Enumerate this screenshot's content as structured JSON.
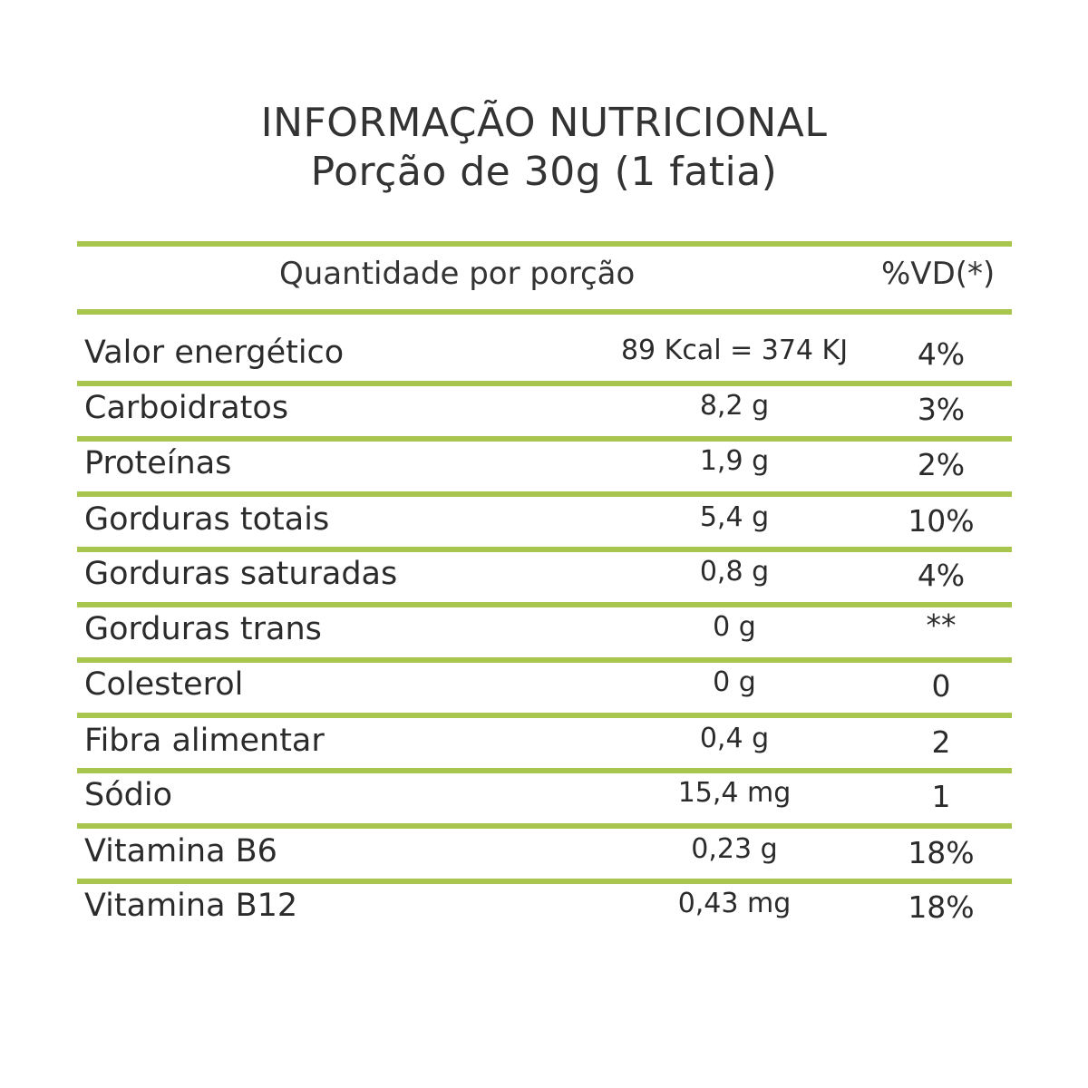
{
  "header": {
    "title_line1": "INFORMAÇÃO NUTRICIONAL",
    "title_line2": "Porção de 30g (1 fatia)"
  },
  "table": {
    "column_quantity": "Quantidade por porção",
    "column_vd": "%VD(*)",
    "rule_color": "#a8c64e",
    "rows": [
      {
        "name": "Valor energético",
        "amount": "89 Kcal = 374 KJ",
        "vd": "4%"
      },
      {
        "name": "Carboidratos",
        "amount": "8,2 g",
        "vd": "3%"
      },
      {
        "name": "Proteínas",
        "amount": "1,9 g",
        "vd": "2%"
      },
      {
        "name": "Gorduras totais",
        "amount": "5,4 g",
        "vd": "10%"
      },
      {
        "name": "Gorduras saturadas",
        "amount": "0,8 g",
        "vd": "4%"
      },
      {
        "name": "Gorduras trans",
        "amount": "0 g",
        "vd": "**"
      },
      {
        "name": "Colesterol",
        "amount": "0 g",
        "vd": "0"
      },
      {
        "name": "Fibra alimentar",
        "amount": "0,4 g",
        "vd": "2"
      },
      {
        "name": "Sódio",
        "amount": "15,4 mg",
        "vd": "1"
      },
      {
        "name": "Vitamina B6",
        "amount": "0,23 g",
        "vd": "18%"
      },
      {
        "name": "Vitamina B12",
        "amount": "0,43 mg",
        "vd": "18%"
      }
    ]
  }
}
